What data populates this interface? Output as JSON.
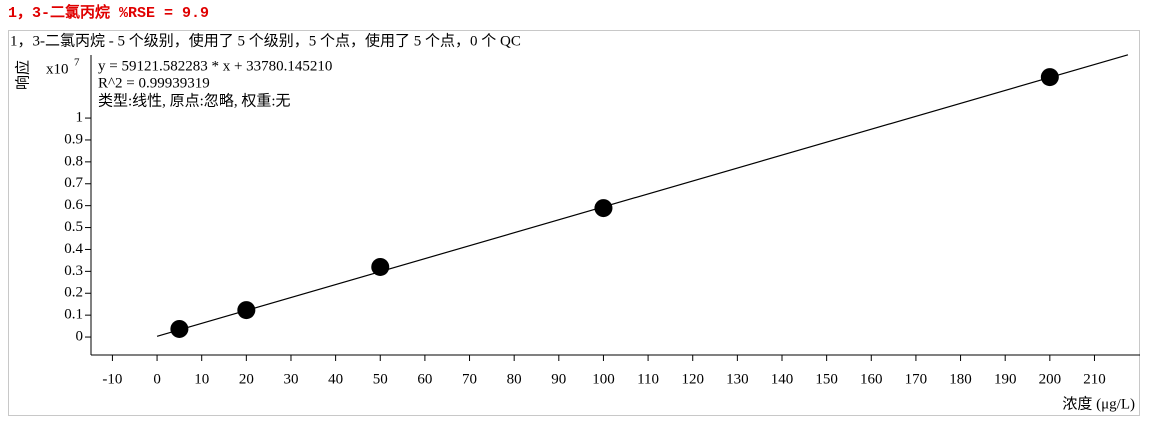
{
  "chart_data": {
    "type": "scatter",
    "title": "1，3-二氯丙烷   %RSE = 9.9",
    "subtitle": "1，3-二氯丙烷 - 5 个级别，使用了 5 个级别，5 个点，使用了 5 个点，0 个 QC",
    "annotations": [
      "y = 59121.582283 * x   + 33780.145210",
      "R^2 = 0.99939319",
      "类型:线性, 原点:忽略, 权重:无"
    ],
    "y_label": "响应",
    "y_multiplier": "x10",
    "y_exponent": "7",
    "x_label": "浓度 (μg/L)",
    "x": [
      5,
      20,
      50,
      100,
      200
    ],
    "values": [
      0.037,
      0.123,
      0.32,
      0.589,
      1.187
    ],
    "color": "#000000",
    "fit_line": {
      "x": [
        0,
        217.5
      ],
      "values": [
        0.0034,
        1.289
      ],
      "color": "#000000"
    },
    "xlim": [
      -14.8,
      220.2
    ],
    "ylim": [
      -0.082,
      1.288
    ],
    "xticks": [
      -10,
      0,
      10,
      20,
      30,
      40,
      50,
      60,
      70,
      80,
      90,
      100,
      110,
      120,
      130,
      140,
      150,
      160,
      170,
      180,
      190,
      200,
      210
    ],
    "yticks": [
      0,
      0.1,
      0.2,
      0.3,
      0.4,
      0.5,
      0.6,
      0.7,
      0.8,
      0.9,
      1
    ]
  }
}
